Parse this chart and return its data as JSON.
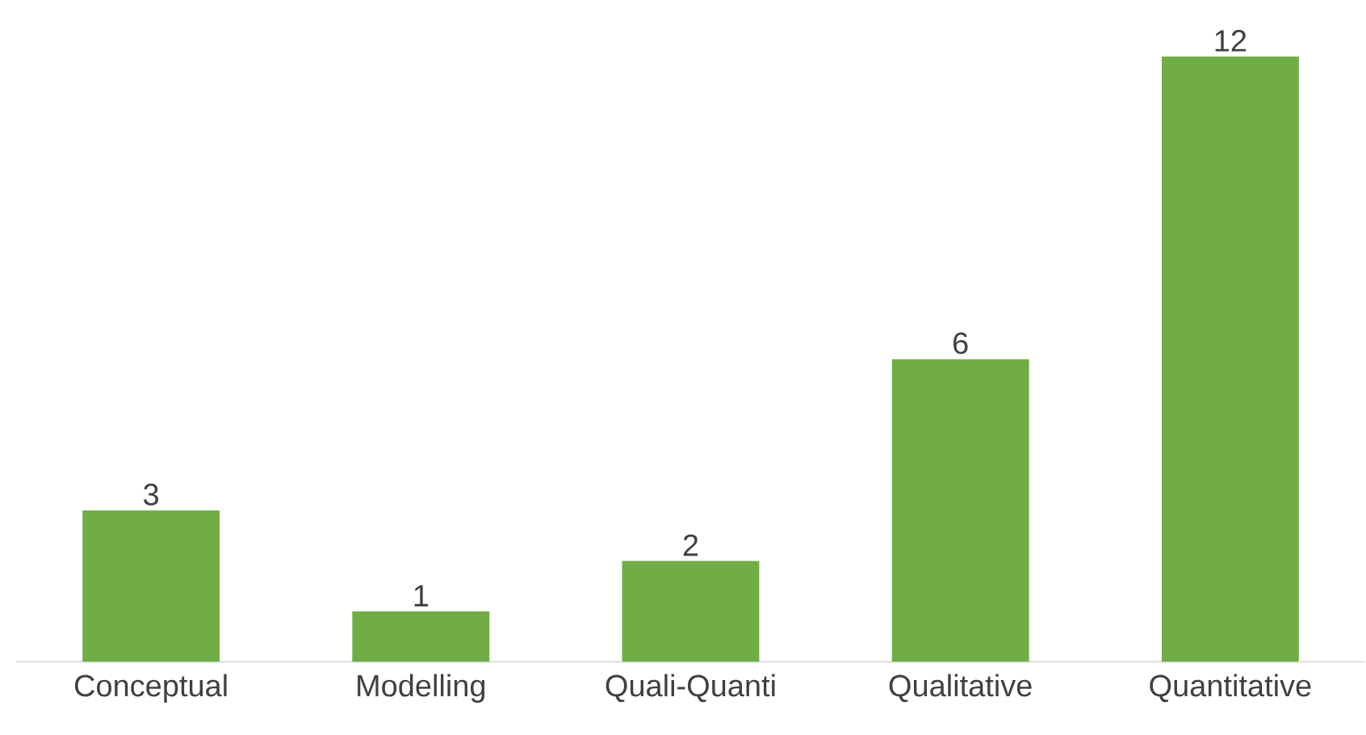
{
  "chart_data": {
    "type": "bar",
    "categories": [
      "Conceptual",
      "Modelling",
      "Quali-Quanti",
      "Qualitative",
      "Quantitative"
    ],
    "values": [
      3,
      1,
      2,
      6,
      12
    ],
    "color": "#70ad47",
    "data_labels": true
  }
}
